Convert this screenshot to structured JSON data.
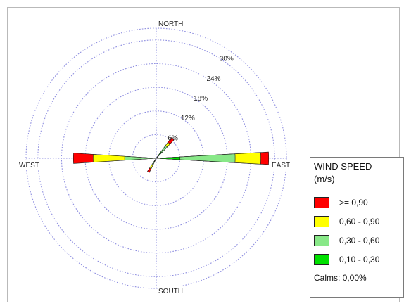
{
  "chart_data": {
    "type": "windrose",
    "directions": [
      "NORTH",
      "EAST",
      "SOUTH",
      "WEST"
    ],
    "ring_labels": [
      "6%",
      "12%",
      "18%",
      "24%",
      "30%"
    ],
    "ring_values": [
      6,
      12,
      18,
      24,
      30
    ],
    "rmax": 33,
    "speed_bins": [
      {
        "label": "0,10 - 0,30",
        "color": "#00e000"
      },
      {
        "label": "0,30 - 0,60",
        "color": "#88e888"
      },
      {
        "label": "0,60 - 0,90",
        "color": "#ffff00"
      },
      {
        "label": ">= 0,90",
        "color": "#ff0000"
      }
    ],
    "petals": [
      {
        "bearing": 90,
        "half_width_deg": 3.2,
        "cumulative": [
          6,
          20,
          26.5,
          28.5
        ]
      },
      {
        "bearing": 270,
        "half_width_deg": 3.6,
        "cumulative": [
          0,
          8,
          16,
          21
        ]
      },
      {
        "bearing": 40,
        "half_width_deg": 4,
        "cumulative": [
          2,
          4,
          5,
          6.5
        ]
      },
      {
        "bearing": 210,
        "half_width_deg": 4,
        "cumulative": [
          1,
          2,
          3,
          4
        ]
      }
    ]
  },
  "legend": {
    "title_line1": "WIND SPEED",
    "title_line2": "(m/s)",
    "items": [
      {
        "label": ">= 0,90",
        "color": "#ff0000"
      },
      {
        "label": "0,60 - 0,90",
        "color": "#ffff00"
      },
      {
        "label": "0,30 - 0,60",
        "color": "#88e888"
      },
      {
        "label": "0,10 - 0,30",
        "color": "#00e000"
      }
    ],
    "calms": "Calms: 0,00%"
  }
}
